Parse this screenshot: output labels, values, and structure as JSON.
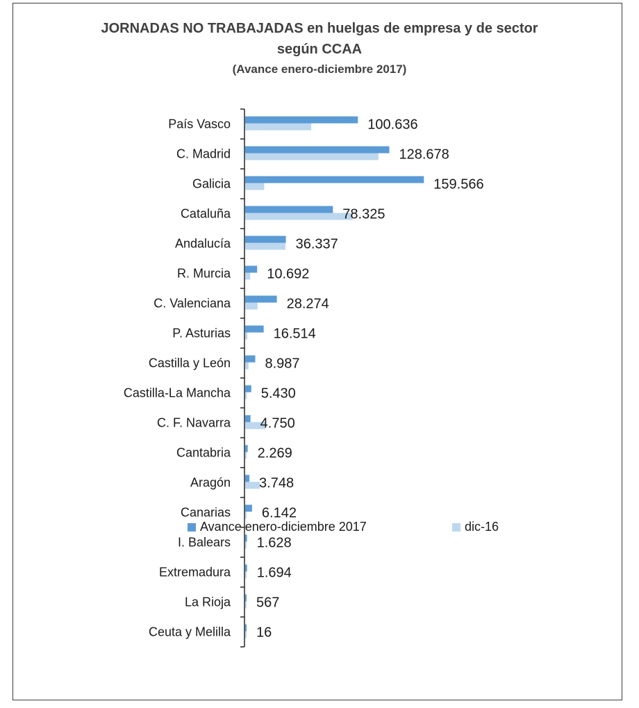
{
  "chart_data": {
    "type": "bar",
    "orientation": "horizontal",
    "title": "JORNADAS NO TRABAJADAS en huelgas de empresa y de sector",
    "title_line2": "según CCAA",
    "subtitle": "(Avance enero-diciembre 2017)",
    "categories": [
      "País Vasco",
      "C. Madrid",
      "Galicia",
      "Cataluña",
      "Andalucía",
      "R. Murcia",
      "C. Valenciana",
      "P. Asturias",
      "Castilla y León",
      "Castilla-La Mancha",
      "C. F. Navarra",
      "Cantabria",
      "Aragón",
      "Canarias",
      "I. Balears",
      "Extremadura",
      "La Rioja",
      "Ceuta y Melilla"
    ],
    "series": [
      {
        "name": "Avance enero-diciembre 2017",
        "color": "#5b9bd5",
        "values": [
          100636,
          128678,
          159566,
          78325,
          36337,
          10692,
          28274,
          16514,
          8987,
          5430,
          4750,
          2269,
          3748,
          6142,
          1628,
          1694,
          567,
          16
        ],
        "labels": [
          "100.636",
          "128.678",
          "159.566",
          "78.325",
          "36.337",
          "10.692",
          "28.274",
          "16.514",
          "8.987",
          "5.430",
          "4.750",
          "2.269",
          "3.748",
          "6.142",
          "1.628",
          "1.694",
          "567",
          "16"
        ]
      },
      {
        "name": "dic-16",
        "color": "#bdd7ee",
        "values": [
          59000,
          119000,
          17000,
          96000,
          36000,
          4500,
          11000,
          2000,
          3000,
          1500,
          18000,
          600,
          13000,
          1000,
          300,
          300,
          200,
          100
        ]
      }
    ],
    "xlim": [
      0,
      160000
    ],
    "legend_position": "bottom"
  }
}
